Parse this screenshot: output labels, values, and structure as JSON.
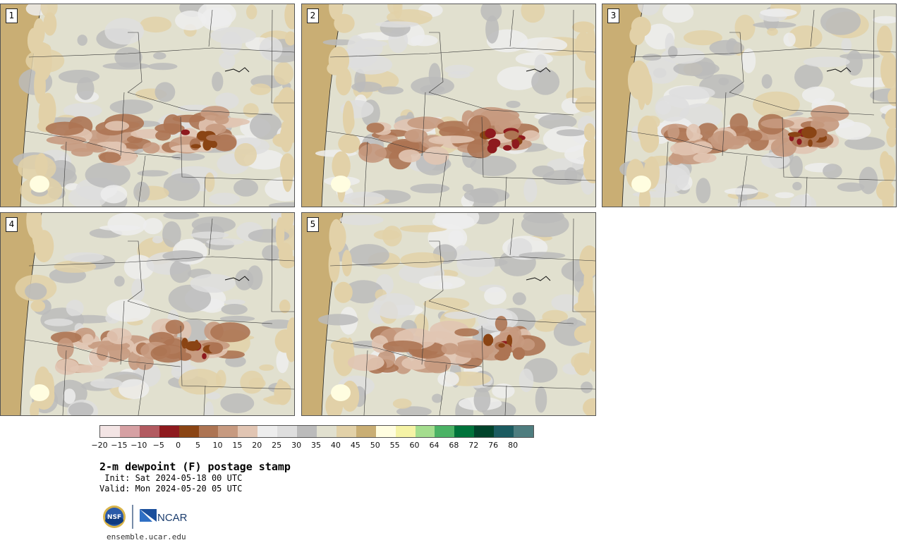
{
  "panels": [
    {
      "label": "1"
    },
    {
      "label": "2"
    },
    {
      "label": "3"
    },
    {
      "label": "4"
    },
    {
      "label": "5"
    }
  ],
  "colorbar": {
    "colors": [
      "#f3e4e4",
      "#d6a0a3",
      "#b25a60",
      "#8e1a1e",
      "#8a4414",
      "#ad7453",
      "#c79a80",
      "#e1c5b3",
      "#ededed",
      "#dedede",
      "#bbbbbb",
      "#e1e0cf",
      "#e2d1a8",
      "#c9ae74",
      "#fffde0",
      "#f5f3a6",
      "#a4dd8e",
      "#4bb265",
      "#00733b",
      "#00432b",
      "#1b5b60",
      "#4e7d7f"
    ],
    "ticks": [
      "−20",
      "−15",
      "−10",
      "−5",
      "0",
      "5",
      "10",
      "15",
      "20",
      "25",
      "30",
      "35",
      "40",
      "45",
      "50",
      "55",
      "60",
      "64",
      "68",
      "72",
      "76",
      "80"
    ]
  },
  "title": "2-m dewpoint (F) postage stamp",
  "init": " Init: Sat 2024-05-18 00 UTC",
  "valid": "Valid: Mon 2024-05-20 05 UTC",
  "logo": {
    "nsf": "NSF",
    "ncar": "NCAR"
  },
  "site": "ensemble.ucar.edu"
}
